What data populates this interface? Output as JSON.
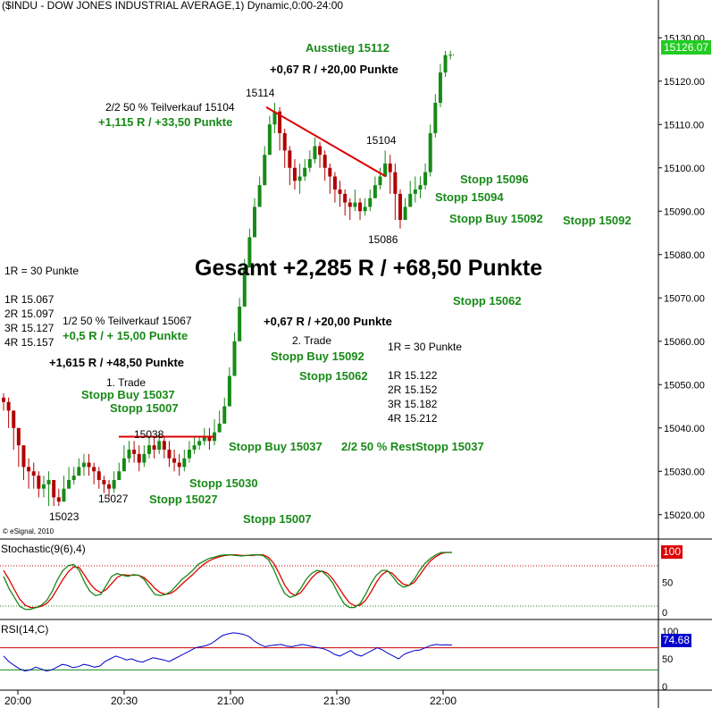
{
  "header": {
    "title": "($INDU - DOW JONES INDUSTRIAL AVERAGE,1) Dynamic,0:00-24:00"
  },
  "copyright": "© eSignal, 2010",
  "price_tag": "15126.07",
  "indicators": {
    "stoch_label": "Stochastic(9(6),4)",
    "stoch_value": "100",
    "rsi_label": "RSI(14,C)",
    "rsi_value": "74.68"
  },
  "annotations": {
    "ausstieg": "Ausstieg 15112",
    "gain_top": "+0,67 R / +20,00 Punkte",
    "p15114": "15114",
    "teil2": "2/2 50 % Teilverkauf 15104",
    "teil2_gain": "+1,115 R / +33,50 Punkte",
    "p15104": "15104",
    "stopp15096": "Stopp 15096",
    "stopp15094": "Stopp 15094",
    "stoppbuy15092": "Stopp Buy 15092",
    "stopp15092": "Stopp 15092",
    "p15086": "15086",
    "r_left": "1R = 30 Punkte",
    "gesamt": "Gesamt +2,285 R / +68,50 Punkte",
    "r1_left": "1R 15.067",
    "r2_left": "2R 15.097",
    "r3_left": "3R 15.127",
    "r4_left": "4R 15.157",
    "teil1": "1/2 50 % Teilverkauf 15067",
    "teil1_gain": "+0,5 R / + 15,00 Punkte",
    "stopp15062a": "Stopp 15062",
    "gain_mid": "+0,67 R / +20,00 Punkte",
    "trade2": "2. Trade",
    "stoppbuy15092b": "Stopp Buy 15092",
    "r_right": "1R = 30 Punkte",
    "stopp15062b": "Stopp 15062",
    "r1_right": "1R 15.122",
    "r2_right": "2R 15.152",
    "r3_right": "3R 15.182",
    "r4_right": "4R 15.212",
    "gain_left": "+1,615 R / +48,50 Punkte",
    "trade1": "1. Trade",
    "stoppbuy15037": "Stopp Buy 15037",
    "stopp15007a": "Stopp 15007",
    "p15038": "15038",
    "stoppbuy15037b": "Stopp Buy 15037",
    "reststopp": "2/2 50 % RestStopp 15037",
    "stopp15030": "Stopp 15030",
    "p15027": "15027",
    "stopp15027": "Stopp 15027",
    "p15023": "15023",
    "stopp15007b": "Stopp 15007"
  },
  "colors": {
    "up_candle": "#178a17",
    "down_candle": "#b00000",
    "trendline": "#dd0000",
    "stoch_k": "#178a17",
    "stoch_d": "#dd0000",
    "rsi": "#0000cc",
    "text_green": "#178a17",
    "price_tag_bg": "#22cc22"
  },
  "chart_data": [
    {
      "type": "candlestick",
      "title": "($INDU - DOW JONES INDUSTRIAL AVERAGE,1) Dynamic,0:00-24:00",
      "interval": "1 minute",
      "x_ticks": [
        "20:00",
        "20:30",
        "21:00",
        "21:30",
        "22:00"
      ],
      "y_ticks": [
        15020,
        15030,
        15040,
        15050,
        15060,
        15070,
        15080,
        15090,
        15100,
        15110,
        15120,
        15130
      ],
      "ylim": [
        15015,
        15135
      ],
      "last_value": 15126.07,
      "close": [
        15046,
        15044,
        15040,
        15036,
        15031,
        15030,
        15029,
        15026,
        15027,
        15028,
        15024,
        15023,
        15026,
        15028,
        15029,
        15031,
        15032,
        15031,
        15030,
        15028,
        15027,
        15026,
        15028,
        15030,
        15033,
        15035,
        15034,
        15032,
        15034,
        15036,
        15035,
        15037,
        15035,
        15033,
        15032,
        15031,
        15033,
        15035,
        15036,
        15037,
        15038,
        15037,
        15039,
        15041,
        15045,
        15052,
        15060,
        15068,
        15077,
        15084,
        15091,
        15096,
        15103,
        15110,
        15113,
        15108,
        15104,
        15100,
        15097,
        15098,
        15100,
        15102,
        15105,
        15103,
        15100,
        15098,
        15095,
        15094,
        15092,
        15091,
        15092,
        15090,
        15091,
        15093,
        15096,
        15098,
        15101,
        15099,
        15094,
        15088,
        15091,
        15094,
        15095,
        15096,
        15099,
        15108,
        15115,
        15122,
        15126,
        15126.07
      ],
      "high": [
        15048,
        15047,
        15044,
        15040,
        15035,
        15033,
        15032,
        15030,
        15029,
        15030,
        15028,
        15026,
        15029,
        15031,
        15031,
        15033,
        15034,
        15034,
        15032,
        15031,
        15029,
        15028,
        15030,
        15032,
        15036,
        15037,
        15037,
        15036,
        15036,
        15038,
        15038,
        15039,
        15038,
        15037,
        15035,
        15034,
        15035,
        15037,
        15038,
        15038,
        15040,
        15040,
        15042,
        15044,
        15047,
        15054,
        15062,
        15070,
        15079,
        15086,
        15093,
        15098,
        15105,
        15112,
        15115,
        15114,
        15109,
        15105,
        15102,
        15101,
        15102,
        15104,
        15107,
        15106,
        15104,
        15101,
        15099,
        15097,
        15095,
        15093,
        15095,
        15093,
        15093,
        15095,
        15098,
        15100,
        15104,
        15103,
        15101,
        15095,
        15093,
        15097,
        15098,
        15098,
        15101,
        15110,
        15117,
        15124,
        15127,
        15127
      ],
      "low": [
        15044,
        15040,
        15035,
        15031,
        15028,
        15026,
        15026,
        15024,
        15024,
        15022,
        15022,
        15022,
        15024,
        15026,
        15027,
        15029,
        15029,
        15029,
        15027,
        15026,
        15025,
        15024,
        15025,
        15028,
        15031,
        15032,
        15032,
        15030,
        15031,
        15033,
        15033,
        15034,
        15033,
        15031,
        15030,
        15029,
        15030,
        15032,
        15034,
        15035,
        15036,
        15035,
        15036,
        15039,
        15042,
        15046,
        15052,
        15060,
        15068,
        15077,
        15084,
        15091,
        15096,
        15103,
        15108,
        15104,
        15100,
        15096,
        15095,
        15094,
        15097,
        15099,
        15101,
        15100,
        15097,
        15094,
        15092,
        15091,
        15089,
        15088,
        15090,
        15088,
        15089,
        15090,
        15093,
        15095,
        15098,
        15094,
        15088,
        15086,
        15088,
        15091,
        15092,
        15093,
        15095,
        15098,
        15107,
        15114,
        15121,
        15125
      ]
    },
    {
      "type": "line",
      "title": "Stochastic(9(6),4)",
      "ylim": [
        0,
        100
      ],
      "y_ticks": [
        0,
        50,
        100
      ],
      "last_value": 100,
      "series": [
        {
          "values": [
            60,
            40,
            25,
            10,
            5,
            5,
            8,
            12,
            20,
            35,
            55,
            70,
            78,
            80,
            70,
            50,
            35,
            28,
            30,
            45,
            60,
            65,
            62,
            60,
            63,
            62,
            55,
            42,
            30,
            28,
            30,
            35,
            45,
            55,
            62,
            70,
            80,
            85,
            90,
            92,
            95,
            96,
            96,
            95,
            94,
            95,
            96,
            96,
            95,
            88,
            72,
            50,
            32,
            25,
            28,
            40,
            55,
            65,
            70,
            68,
            60,
            48,
            30,
            15,
            8,
            8,
            15,
            30,
            48,
            62,
            70,
            70,
            60,
            48,
            42,
            45,
            55,
            70,
            82,
            90,
            96,
            100,
            100,
            100
          ]
        },
        {
          "values": [
            70,
            55,
            38,
            22,
            12,
            8,
            8,
            10,
            15,
            25,
            40,
            55,
            68,
            76,
            75,
            62,
            48,
            38,
            33,
            38,
            48,
            58,
            63,
            62,
            62,
            62,
            58,
            50,
            40,
            33,
            30,
            32,
            38,
            47,
            55,
            63,
            72,
            80,
            86,
            90,
            93,
            95,
            96,
            96,
            95,
            95,
            95,
            96,
            96,
            92,
            82,
            65,
            46,
            33,
            28,
            33,
            45,
            57,
            66,
            69,
            65,
            55,
            42,
            28,
            16,
            11,
            12,
            20,
            34,
            50,
            63,
            69,
            65,
            55,
            47,
            45,
            50,
            62,
            75,
            86,
            93,
            98,
            100,
            100
          ]
        }
      ]
    },
    {
      "type": "line",
      "title": "RSI(14,C)",
      "ylim": [
        0,
        100
      ],
      "y_ticks": [
        0,
        50,
        100
      ],
      "last_value": 74.68,
      "series": [
        {
          "values": [
            55,
            45,
            38,
            32,
            28,
            30,
            35,
            32,
            28,
            30,
            35,
            40,
            38,
            34,
            36,
            40,
            38,
            35,
            37,
            45,
            50,
            55,
            52,
            48,
            50,
            46,
            44,
            48,
            52,
            50,
            48,
            45,
            50,
            55,
            60,
            65,
            70,
            72,
            74,
            78,
            85,
            92,
            95,
            97,
            96,
            94,
            90,
            82,
            76,
            72,
            74,
            75,
            76,
            73,
            72,
            74,
            76,
            74,
            72,
            70,
            68,
            64,
            58,
            55,
            60,
            65,
            58,
            55,
            60,
            65,
            70,
            66,
            60,
            55,
            50,
            58,
            62,
            65,
            66,
            70,
            74,
            76,
            75,
            75.5,
            74.68
          ]
        }
      ]
    }
  ]
}
